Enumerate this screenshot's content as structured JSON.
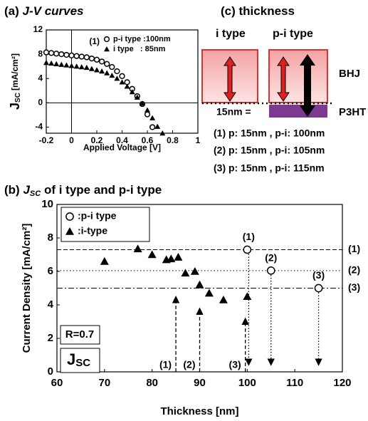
{
  "chart_data": [
    {
      "type": "scatter",
      "panel": "(a)",
      "title_parts": [
        "J-V curves"
      ],
      "xlabel": "Applied Voltage [V]",
      "ylabel_parts": [
        "J",
        "SC",
        "[mA/cm²]"
      ],
      "xlim": [
        -0.2,
        1
      ],
      "xticks": [
        -0.2,
        0,
        0.2,
        0.4,
        0.6,
        0.8,
        1
      ],
      "ylim": [
        -5,
        12
      ],
      "yticks": [
        -4,
        0,
        4,
        8,
        12
      ],
      "zero_lines": true,
      "legend_title": "(1)",
      "series": [
        {
          "name": "p-i type :100nm",
          "marker": "circle-open",
          "color": "#000000",
          "x": [
            -0.2,
            -0.16,
            -0.12,
            -0.08,
            -0.04,
            0,
            0.04,
            0.08,
            0.12,
            0.16,
            0.2,
            0.24,
            0.28,
            0.32,
            0.36,
            0.4,
            0.44,
            0.48,
            0.52,
            0.56,
            0.6,
            0.64
          ],
          "values": [
            8.3,
            8.2,
            8.1,
            8.0,
            7.9,
            7.8,
            7.7,
            7.6,
            7.5,
            7.3,
            7.1,
            6.8,
            6.4,
            5.9,
            5.2,
            4.4,
            3.4,
            2.3,
            1.1,
            -0.2,
            -1.9,
            -4.0
          ]
        },
        {
          "name": "i type   : 85nm",
          "marker": "triangle",
          "color": "#000000",
          "x": [
            -0.2,
            -0.16,
            -0.12,
            -0.08,
            -0.04,
            0,
            0.04,
            0.08,
            0.12,
            0.16,
            0.2,
            0.24,
            0.28,
            0.32,
            0.36,
            0.4,
            0.44,
            0.48,
            0.52,
            0.56,
            0.6,
            0.64,
            0.68,
            0.72
          ],
          "values": [
            6.6,
            6.5,
            6.4,
            6.3,
            6.2,
            6.1,
            6.0,
            5.9,
            5.8,
            5.6,
            5.4,
            5.2,
            4.9,
            4.5,
            4.0,
            3.4,
            2.7,
            1.8,
            0.9,
            -0.1,
            -1.2,
            -2.5,
            -3.9,
            -5.0
          ]
        }
      ]
    },
    {
      "type": "scatter",
      "panel": "(b)",
      "title_parts": [
        "J",
        "SC",
        "of i type and p-i type"
      ],
      "xlabel": "Thickness [nm]",
      "ylabel_parts": [
        "Current Density [mA/cm²]"
      ],
      "xlim": [
        60,
        120
      ],
      "xticks": [
        60,
        70,
        80,
        90,
        100,
        110,
        120
      ],
      "ylim": [
        0,
        10
      ],
      "yticks": [
        0,
        2,
        4,
        6,
        8,
        10
      ],
      "series": [
        {
          "name": ":p-i type",
          "marker": "circle-open",
          "color": "#000000",
          "x": [
            100,
            105,
            115
          ],
          "values": [
            7.3,
            6.05,
            5.0
          ]
        },
        {
          "name": ":i-type",
          "marker": "triangle",
          "color": "#000000",
          "x": [
            70,
            77,
            80,
            83,
            84,
            85.5,
            87,
            89,
            90,
            92,
            95,
            100
          ],
          "values": [
            6.6,
            7.35,
            7.0,
            6.7,
            6.75,
            6.85,
            5.9,
            6.0,
            5.2,
            4.7,
            4.3,
            4.5
          ]
        }
      ],
      "hlines": [
        {
          "value": 7.3,
          "label": "(1)",
          "style": "dashed"
        },
        {
          "value": 6.05,
          "label": "(2)",
          "style": "dotted"
        },
        {
          "value": 5.0,
          "label": "(3)",
          "style": "dashdot"
        }
      ],
      "up_arrows": [
        {
          "label": "(1)",
          "x": 85,
          "y_end": 4.5
        },
        {
          "label": "(2)",
          "x": 90,
          "y_end": 3.8
        },
        {
          "label": "(3)",
          "x": 99.6,
          "y_end": 3.2
        }
      ],
      "down_arrows": [
        {
          "label": "(1)",
          "x": 100.3,
          "y_start": 7.3,
          "y_end": 0.4
        },
        {
          "label": "(2)",
          "x": 105,
          "y_start": 6.05,
          "y_end": 0.4
        },
        {
          "label": "(3)",
          "x": 115,
          "y_start": 5.0,
          "y_end": 0.4
        }
      ],
      "notes": [
        "R=0.7"
      ],
      "badge_parts": [
        "J",
        "SC"
      ]
    }
  ],
  "diagram": {
    "panel": "(c)",
    "title": "thickness",
    "i_type": "i type",
    "pi_type": "p-i type",
    "bhj": "BHJ",
    "p3ht": "P3HT",
    "thin": "15nm =",
    "notes": [
      "(1) p: 15nm , p-i: 100nm",
      "(2) p: 15nm , p-i: 105nm",
      "(3) p: 15nm , p-i: 115nm"
    ]
  }
}
